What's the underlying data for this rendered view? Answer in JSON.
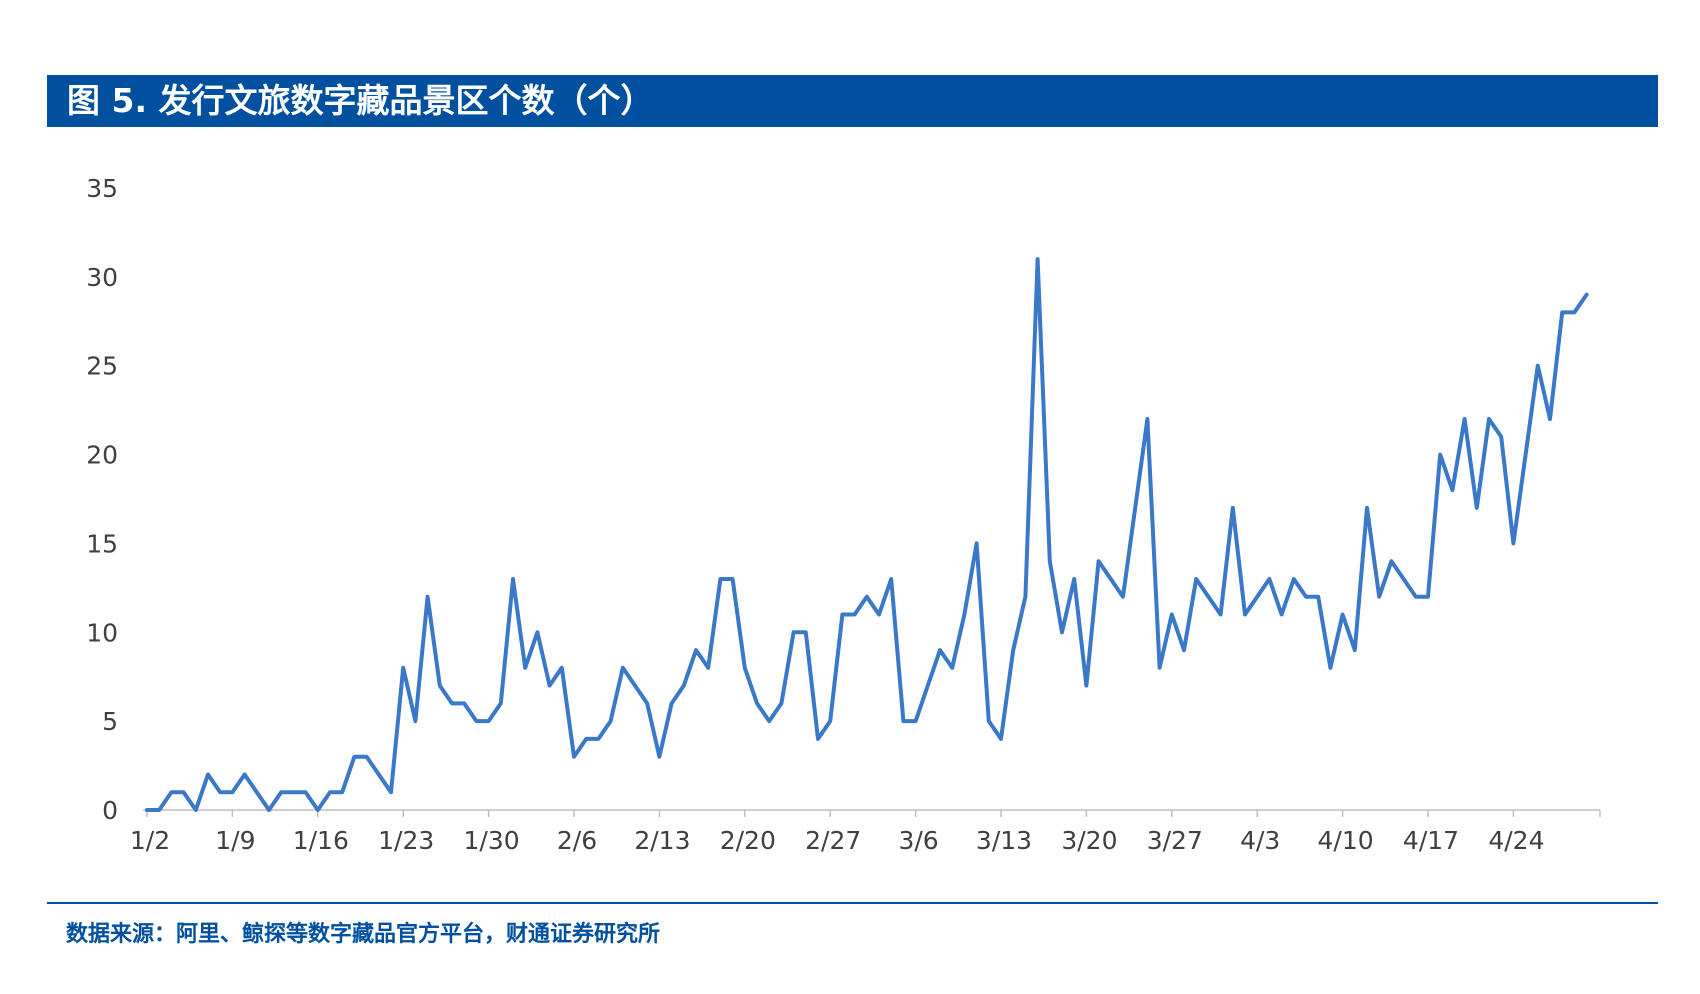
{
  "header": {
    "title": "图 5. 发行文旅数字藏品景区个数（个）"
  },
  "footer": {
    "source": "数据来源：阿里、鲸探等数字藏品官方平台，财通证券研究所"
  },
  "colors": {
    "header_bg": "#0050a0",
    "line": "#3a78c9",
    "axis_text": "#404040",
    "source_text": "#0050a0"
  },
  "chart_data": {
    "type": "line",
    "title": "",
    "xlabel": "",
    "ylabel": "",
    "ylim": [
      0,
      35
    ],
    "yticks": [
      0,
      5,
      10,
      15,
      20,
      25,
      30,
      35
    ],
    "grid": false,
    "legend": "none",
    "x_start": "1/2",
    "x_tick_labels": [
      "1/2",
      "1/9",
      "1/16",
      "1/23",
      "1/30",
      "2/6",
      "2/13",
      "2/20",
      "2/27",
      "3/6",
      "3/13",
      "3/20",
      "3/27",
      "4/3",
      "4/10",
      "4/17",
      "4/24"
    ],
    "series": [
      {
        "name": "",
        "values": [
          0,
          0,
          1,
          1,
          0,
          2,
          1,
          1,
          2,
          1,
          0,
          1,
          1,
          1,
          0,
          1,
          1,
          3,
          3,
          2,
          1,
          8,
          5,
          12,
          7,
          6,
          6,
          5,
          5,
          6,
          13,
          8,
          10,
          7,
          8,
          3,
          4,
          4,
          5,
          8,
          7,
          6,
          3,
          6,
          7,
          9,
          8,
          13,
          13,
          8,
          6,
          5,
          6,
          10,
          10,
          4,
          5,
          11,
          11,
          12,
          11,
          13,
          5,
          5,
          7,
          9,
          8,
          11,
          15,
          5,
          4,
          9,
          12,
          31,
          14,
          10,
          13,
          7,
          14,
          13,
          12,
          17,
          22,
          8,
          11,
          9,
          13,
          12,
          11,
          17,
          11,
          12,
          13,
          11,
          13,
          12,
          12,
          8,
          11,
          9,
          17,
          12,
          14,
          13,
          12,
          12,
          20,
          18,
          22,
          17,
          22,
          21,
          15,
          20,
          25,
          22,
          28,
          28,
          29
        ]
      }
    ]
  }
}
